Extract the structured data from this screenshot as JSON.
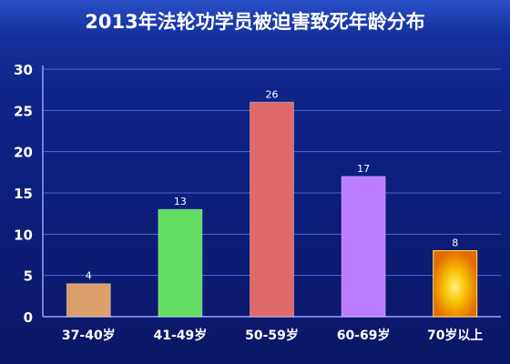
{
  "chart_data": {
    "type": "bar",
    "title": "2013年法轮功学员被迫害致死年龄分布",
    "categories": [
      "37-40岁",
      "41-49岁",
      "50-59岁",
      "60-69岁",
      "70岁以上"
    ],
    "values": [
      4,
      13,
      26,
      17,
      8
    ],
    "value_labels": [
      "4",
      "13",
      "26",
      "17",
      "8"
    ],
    "ylim": [
      0,
      30
    ],
    "yticks": [
      "0",
      "5",
      "10",
      "15",
      "20",
      "25",
      "30"
    ],
    "grid": true,
    "legend": "none",
    "bar_colors": [
      "#d9a06b",
      "#62dd62",
      "#df6a6a",
      "#bb7cff",
      "#f6a300"
    ],
    "background_color": "#0a1a66"
  }
}
